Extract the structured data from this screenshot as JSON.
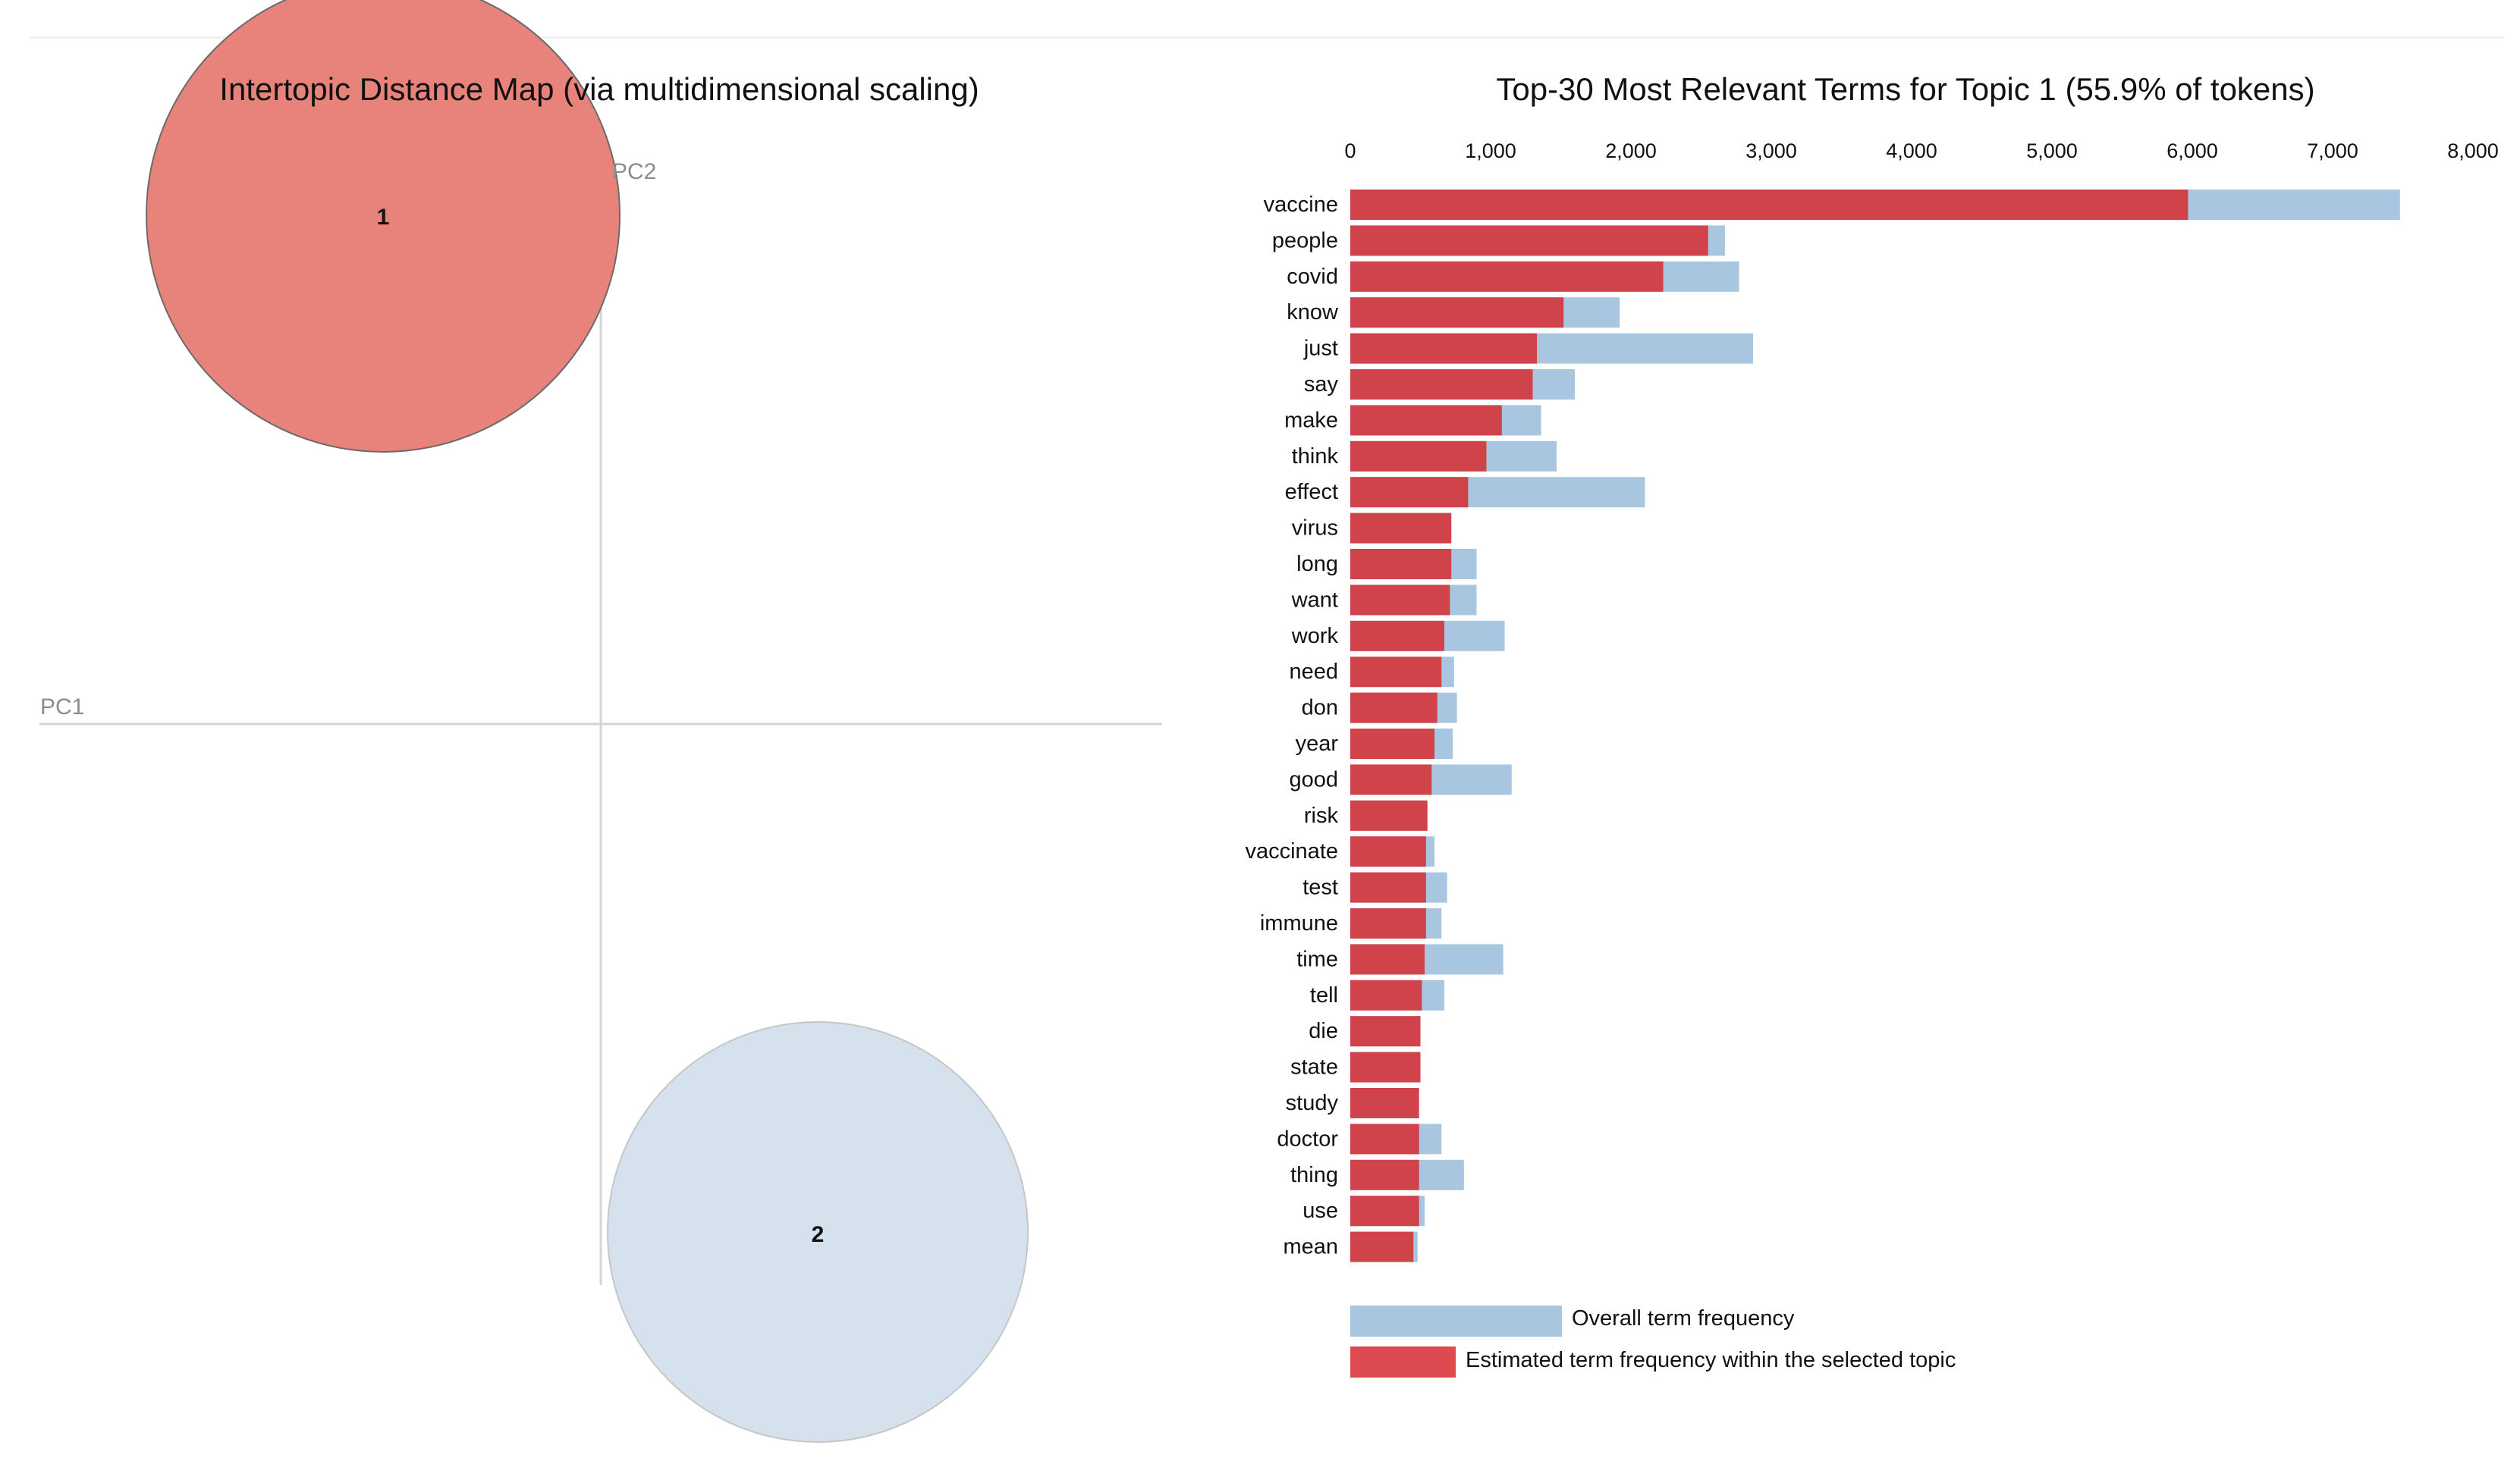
{
  "mds": {
    "title": "Intertopic Distance Map (via multidimensional scaling)",
    "pc1_label": "PC1",
    "pc2_label": "PC2",
    "topics": [
      {
        "id": "1",
        "label": "1",
        "selected": true
      },
      {
        "id": "2",
        "label": "2",
        "selected": false
      }
    ],
    "colors": {
      "selected_fill": "#e8837b",
      "unselected_fill": "#d6e1ee",
      "axis": "#cfcfcf"
    }
  },
  "chart_data": {
    "type": "bar",
    "orientation": "horizontal",
    "title": "Top-30 Most Relevant Terms for Topic 1 (55.9% of tokens)",
    "xlim": [
      0,
      8000
    ],
    "ticks": [
      0,
      1000,
      2000,
      3000,
      4000,
      5000,
      6000,
      7000,
      8000
    ],
    "tick_labels": [
      "0",
      "1,000",
      "2,000",
      "3,000",
      "4,000",
      "5,000",
      "6,000",
      "7,000",
      "8,000"
    ],
    "categories": [
      "vaccine",
      "people",
      "covid",
      "know",
      "just",
      "say",
      "make",
      "think",
      "effect",
      "virus",
      "long",
      "want",
      "work",
      "need",
      "don",
      "year",
      "good",
      "risk",
      "vaccinate",
      "test",
      "immune",
      "time",
      "tell",
      "die",
      "state",
      "study",
      "doctor",
      "thing",
      "use",
      "mean"
    ],
    "series": [
      {
        "name": "Overall term frequency",
        "color": "#a9c6e0",
        "values": [
          7480,
          2670,
          2770,
          1920,
          2870,
          1600,
          1360,
          1470,
          2100,
          720,
          900,
          900,
          1100,
          740,
          760,
          730,
          1150,
          550,
          600,
          690,
          650,
          1090,
          670,
          500,
          500,
          490,
          650,
          810,
          530,
          480
        ]
      },
      {
        "name": "Estimated term frequency within the selected topic",
        "color": "#d1434b",
        "values": [
          5970,
          2550,
          2230,
          1520,
          1330,
          1300,
          1080,
          970,
          840,
          720,
          720,
          710,
          670,
          650,
          620,
          600,
          580,
          550,
          540,
          540,
          540,
          530,
          510,
          500,
          500,
          490,
          490,
          490,
          490,
          450
        ]
      }
    ],
    "legend": {
      "overall": "Overall term frequency",
      "estimated": "Estimated term frequency within the selected topic",
      "overall_color": "#a9c6e0",
      "estimated_color": "#dd4b50"
    }
  }
}
